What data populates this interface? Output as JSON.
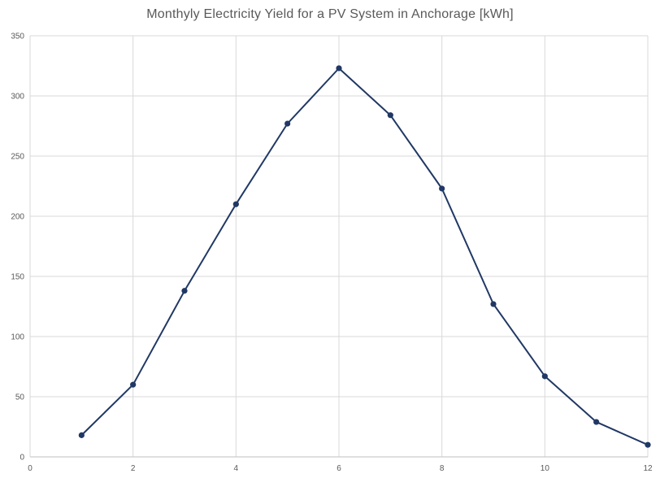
{
  "chart_data": {
    "type": "line",
    "title": "Monthyly Electricity Yield for a PV System in Anchorage [kWh]",
    "xlabel": "",
    "ylabel": "",
    "xlim": [
      0,
      12
    ],
    "ylim": [
      0,
      350
    ],
    "x_ticks": [
      0,
      2,
      4,
      6,
      8,
      10,
      12
    ],
    "y_ticks": [
      0,
      50,
      100,
      150,
      200,
      250,
      300,
      350
    ],
    "grid": true,
    "legend": "none",
    "series": [
      {
        "color": "#203864",
        "x": [
          1,
          2,
          3,
          4,
          5,
          6,
          7,
          8,
          9,
          10,
          11,
          12
        ],
        "y": [
          18,
          60,
          138,
          210,
          277,
          323,
          284,
          223,
          127,
          67,
          29,
          10
        ]
      }
    ]
  }
}
